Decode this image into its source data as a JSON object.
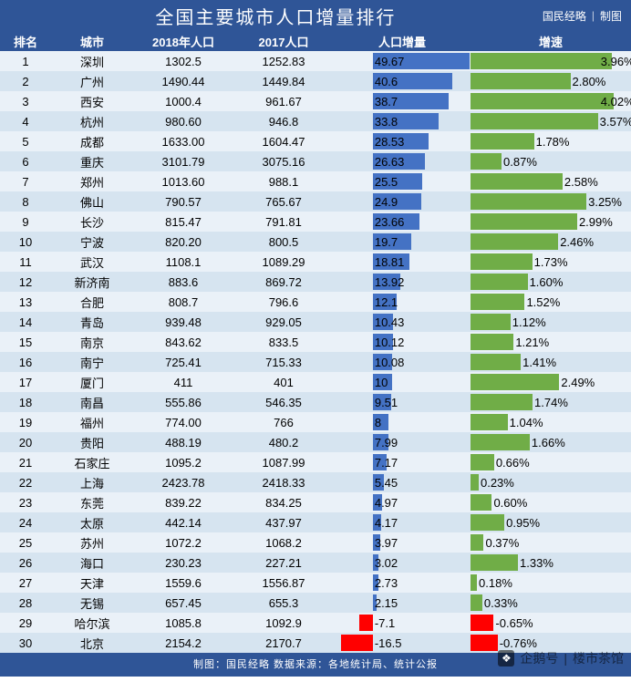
{
  "title": "全国主要城市人口增量排行",
  "credit_left": "国民经略",
  "credit_right": "制图",
  "footer": "制图：国民经略 数据来源：各地统计局、统计公报",
  "watermark_brand": "企鹅号",
  "watermark_name": "楼市茶馆",
  "colors": {
    "header_bg": "#2f5597",
    "header_fg": "#ffffff",
    "title_bg": "#2f5597",
    "title_fg": "#ffffff",
    "row_odd": "#eaf1f8",
    "row_even": "#d6e4f0",
    "bar_inc_pos": "#4472c4",
    "bar_inc_neg": "#ff0000",
    "bar_rate_pos": "#70ad47",
    "bar_rate_neg": "#ff0000",
    "text": "#000000",
    "footer_bg": "#2f5597",
    "footer_fg": "#ffffff"
  },
  "columns": [
    "排名",
    "城市",
    "2018年人口",
    "2017人口",
    "人口增量",
    "增速"
  ],
  "inc_axis": {
    "min": -20,
    "max": 50,
    "zero_frac": 0.2857
  },
  "rate_axis": {
    "min": 0,
    "max": 0.045
  },
  "rows": [
    {
      "rank": 1,
      "city": "深圳",
      "p2018": "1302.5",
      "p2017": "1252.83",
      "inc": 49.67,
      "rate": 0.0396,
      "rate_label": "3.96%"
    },
    {
      "rank": 2,
      "city": "广州",
      "p2018": "1490.44",
      "p2017": "1449.84",
      "inc": 40.6,
      "rate": 0.028,
      "rate_label": "2.80%"
    },
    {
      "rank": 3,
      "city": "西安",
      "p2018": "1000.4",
      "p2017": "961.67",
      "inc": 38.7,
      "rate": 0.0402,
      "rate_label": "4.02%"
    },
    {
      "rank": 4,
      "city": "杭州",
      "p2018": "980.60",
      "p2017": "946.8",
      "inc": 33.8,
      "rate": 0.0357,
      "rate_label": "3.57%"
    },
    {
      "rank": 5,
      "city": "成都",
      "p2018": "1633.00",
      "p2017": "1604.47",
      "inc": 28.53,
      "rate": 0.0178,
      "rate_label": "1.78%"
    },
    {
      "rank": 6,
      "city": "重庆",
      "p2018": "3101.79",
      "p2017": "3075.16",
      "inc": 26.63,
      "rate": 0.0087,
      "rate_label": "0.87%"
    },
    {
      "rank": 7,
      "city": "郑州",
      "p2018": "1013.60",
      "p2017": "988.1",
      "inc": 25.5,
      "rate": 0.0258,
      "rate_label": "2.58%"
    },
    {
      "rank": 8,
      "city": "佛山",
      "p2018": "790.57",
      "p2017": "765.67",
      "inc": 24.9,
      "rate": 0.0325,
      "rate_label": "3.25%"
    },
    {
      "rank": 9,
      "city": "长沙",
      "p2018": "815.47",
      "p2017": "791.81",
      "inc": 23.66,
      "rate": 0.0299,
      "rate_label": "2.99%"
    },
    {
      "rank": 10,
      "city": "宁波",
      "p2018": "820.20",
      "p2017": "800.5",
      "inc": 19.7,
      "rate": 0.0246,
      "rate_label": "2.46%"
    },
    {
      "rank": 11,
      "city": "武汉",
      "p2018": "1108.1",
      "p2017": "1089.29",
      "inc": 18.81,
      "rate": 0.0173,
      "rate_label": "1.73%"
    },
    {
      "rank": 12,
      "city": "新济南",
      "p2018": "883.6",
      "p2017": "869.72",
      "inc": 13.92,
      "rate": 0.016,
      "rate_label": "1.60%"
    },
    {
      "rank": 13,
      "city": "合肥",
      "p2018": "808.7",
      "p2017": "796.6",
      "inc": 12.1,
      "rate": 0.0152,
      "rate_label": "1.52%"
    },
    {
      "rank": 14,
      "city": "青岛",
      "p2018": "939.48",
      "p2017": "929.05",
      "inc": 10.43,
      "rate": 0.0112,
      "rate_label": "1.12%"
    },
    {
      "rank": 15,
      "city": "南京",
      "p2018": "843.62",
      "p2017": "833.5",
      "inc": 10.12,
      "rate": 0.0121,
      "rate_label": "1.21%"
    },
    {
      "rank": 16,
      "city": "南宁",
      "p2018": "725.41",
      "p2017": "715.33",
      "inc": 10.08,
      "rate": 0.0141,
      "rate_label": "1.41%"
    },
    {
      "rank": 17,
      "city": "厦门",
      "p2018": "411",
      "p2017": "401",
      "inc": 10,
      "rate": 0.0249,
      "rate_label": "2.49%"
    },
    {
      "rank": 18,
      "city": "南昌",
      "p2018": "555.86",
      "p2017": "546.35",
      "inc": 9.51,
      "rate": 0.0174,
      "rate_label": "1.74%"
    },
    {
      "rank": 19,
      "city": "福州",
      "p2018": "774.00",
      "p2017": "766",
      "inc": 8,
      "rate": 0.0104,
      "rate_label": "1.04%"
    },
    {
      "rank": 20,
      "city": "贵阳",
      "p2018": "488.19",
      "p2017": "480.2",
      "inc": 7.99,
      "rate": 0.0166,
      "rate_label": "1.66%"
    },
    {
      "rank": 21,
      "city": "石家庄",
      "p2018": "1095.2",
      "p2017": "1087.99",
      "inc": 7.17,
      "rate": 0.0066,
      "rate_label": "0.66%"
    },
    {
      "rank": 22,
      "city": "上海",
      "p2018": "2423.78",
      "p2017": "2418.33",
      "inc": 5.45,
      "rate": 0.0023,
      "rate_label": "0.23%"
    },
    {
      "rank": 23,
      "city": "东莞",
      "p2018": "839.22",
      "p2017": "834.25",
      "inc": 4.97,
      "rate": 0.006,
      "rate_label": "0.60%"
    },
    {
      "rank": 24,
      "city": "太原",
      "p2018": "442.14",
      "p2017": "437.97",
      "inc": 4.17,
      "rate": 0.0095,
      "rate_label": "0.95%"
    },
    {
      "rank": 25,
      "city": "苏州",
      "p2018": "1072.2",
      "p2017": "1068.2",
      "inc": 3.97,
      "rate": 0.0037,
      "rate_label": "0.37%"
    },
    {
      "rank": 26,
      "city": "海口",
      "p2018": "230.23",
      "p2017": "227.21",
      "inc": 3.02,
      "rate": 0.0133,
      "rate_label": "1.33%"
    },
    {
      "rank": 27,
      "city": "天津",
      "p2018": "1559.6",
      "p2017": "1556.87",
      "inc": 2.73,
      "rate": 0.0018,
      "rate_label": "0.18%"
    },
    {
      "rank": 28,
      "city": "无锡",
      "p2018": "657.45",
      "p2017": "655.3",
      "inc": 2.15,
      "rate": 0.0033,
      "rate_label": "0.33%"
    },
    {
      "rank": 29,
      "city": "哈尔滨",
      "p2018": "1085.8",
      "p2017": "1092.9",
      "inc": -7.1,
      "rate": -0.0065,
      "rate_label": "-0.65%"
    },
    {
      "rank": 30,
      "city": "北京",
      "p2018": "2154.2",
      "p2017": "2170.7",
      "inc": -16.5,
      "rate": -0.0076,
      "rate_label": "-0.76%"
    }
  ]
}
